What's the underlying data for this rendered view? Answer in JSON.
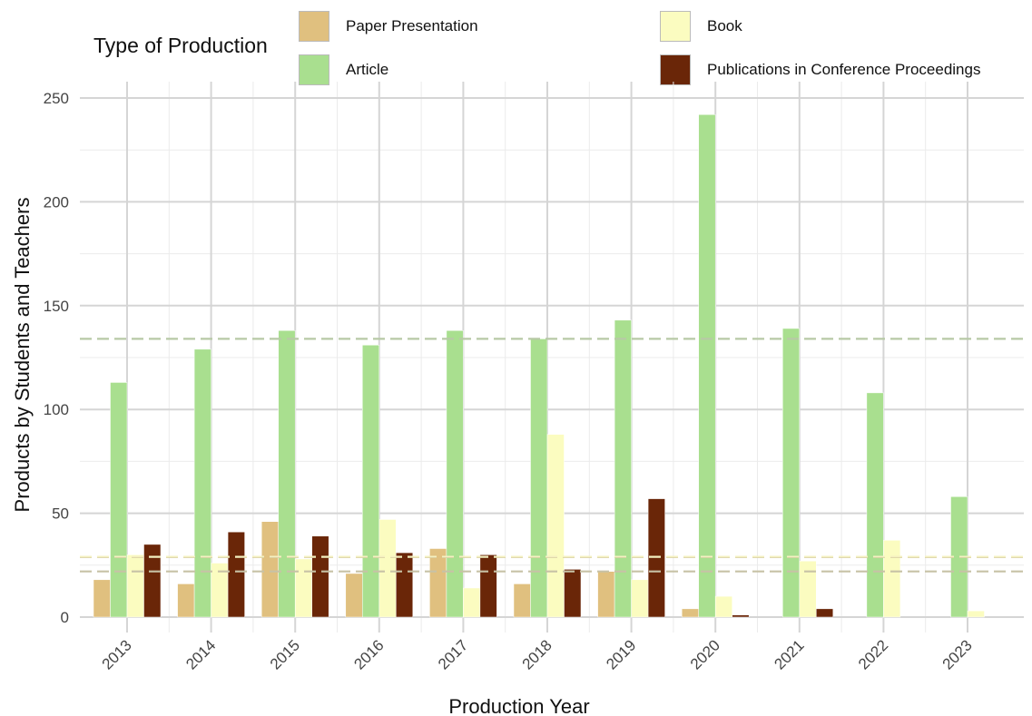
{
  "legend": {
    "title": "Type of Production",
    "items": [
      {
        "label": "Paper Presentation",
        "color": "#E0C07F"
      },
      {
        "label": "Book",
        "color": "#FBFCC0"
      },
      {
        "label": "Article",
        "color": "#A9DF8F"
      },
      {
        "label": "Publications in Conference Proceedings",
        "color": "#6A2608"
      }
    ]
  },
  "chart_data": {
    "type": "bar",
    "xlabel": "Production Year",
    "ylabel": "Products by Students and Teachers",
    "categories": [
      "2013",
      "2014",
      "2015",
      "2016",
      "2017",
      "2018",
      "2019",
      "2020",
      "2021",
      "2022",
      "2023"
    ],
    "ylim": [
      0,
      250
    ],
    "yticks": [
      0,
      50,
      100,
      150,
      200,
      250
    ],
    "grid": true,
    "legend_position": "top",
    "series": [
      {
        "name": "Paper Presentation",
        "color": "#E0C07F",
        "values": [
          18,
          16,
          46,
          21,
          33,
          16,
          22,
          4,
          0,
          0,
          0
        ]
      },
      {
        "name": "Article",
        "color": "#A9DF8F",
        "values": [
          113,
          129,
          138,
          131,
          138,
          134,
          143,
          242,
          139,
          108,
          58
        ]
      },
      {
        "name": "Book",
        "color": "#FBFCC0",
        "values": [
          30,
          26,
          28,
          47,
          14,
          88,
          18,
          10,
          27,
          37,
          3
        ]
      },
      {
        "name": "Publications in Conference Proceedings",
        "color": "#6A2608",
        "values": [
          35,
          41,
          39,
          31,
          30,
          23,
          57,
          1,
          4,
          0,
          0
        ]
      }
    ],
    "reference_lines": [
      {
        "series": "Article",
        "value": 134,
        "color": "#B7C9A6",
        "style": "dashed"
      },
      {
        "series": "Publications in Conference Proceedings",
        "value": 29,
        "color": "#4A2208",
        "style": "dashed"
      },
      {
        "series": "Book",
        "value": 29,
        "color": "#F4F0C0",
        "style": "dashed"
      },
      {
        "series": "Paper Presentation",
        "value": 22,
        "color": "#C7C2A6",
        "style": "dashed"
      }
    ]
  }
}
